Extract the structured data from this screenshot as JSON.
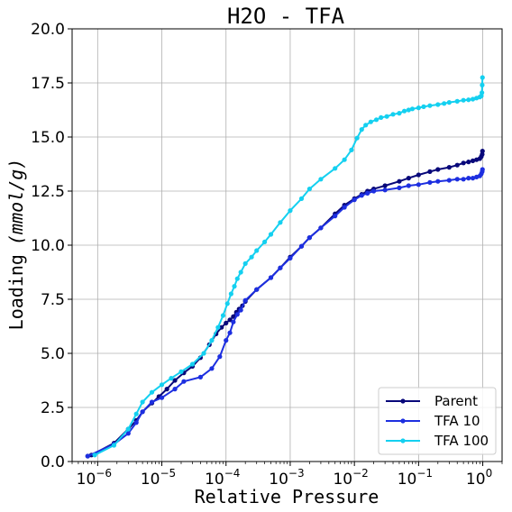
{
  "chart_data": {
    "type": "line",
    "title": "H2O - TFA",
    "xlabel": "Relative Pressure",
    "ylabel": "Loading (mmol/g)",
    "ylabel_prefix": "Loading",
    "ylabel_math": "(mmol/g)",
    "xscale": "log",
    "xlim": [
      4e-07,
      2.0
    ],
    "ylim": [
      0,
      20
    ],
    "grid": true,
    "legend_position": "lower-right",
    "x_ticks": [
      {
        "value": 1e-06,
        "base": "10",
        "exp": "−6"
      },
      {
        "value": 1e-05,
        "base": "10",
        "exp": "−5"
      },
      {
        "value": 0.0001,
        "base": "10",
        "exp": "−4"
      },
      {
        "value": 0.001,
        "base": "10",
        "exp": "−3"
      },
      {
        "value": 0.01,
        "base": "10",
        "exp": "−2"
      },
      {
        "value": 0.1,
        "base": "10",
        "exp": "−1"
      },
      {
        "value": 1,
        "base": "10",
        "exp": "0"
      }
    ],
    "y_ticks": [
      {
        "value": 0,
        "label": "0.0"
      },
      {
        "value": 2.5,
        "label": "2.5"
      },
      {
        "value": 5,
        "label": "5.0"
      },
      {
        "value": 7.5,
        "label": "7.5"
      },
      {
        "value": 10,
        "label": "10.0"
      },
      {
        "value": 12.5,
        "label": "12.5"
      },
      {
        "value": 15,
        "label": "15.0"
      },
      {
        "value": 17.5,
        "label": "17.5"
      },
      {
        "value": 20,
        "label": "20.0"
      }
    ],
    "series": [
      {
        "name": "Parent",
        "color": "#08087a",
        "x": [
          7e-07,
          8e-07,
          1.8e-06,
          3e-06,
          4e-06,
          5e-06,
          7e-06,
          9e-06,
          1.2e-05,
          1.6e-05,
          2.2e-05,
          3e-05,
          4e-05,
          5.5e-05,
          7e-05,
          8.5e-05,
          0.0001,
          0.000115,
          0.00013,
          0.000145,
          0.00016,
          0.00018,
          0.0002,
          0.0003,
          0.0005,
          0.0007,
          0.001,
          0.0015,
          0.002,
          0.003,
          0.005,
          0.007,
          0.01,
          0.013,
          0.016,
          0.02,
          0.03,
          0.05,
          0.07,
          0.1,
          0.15,
          0.2,
          0.3,
          0.4,
          0.5,
          0.6,
          0.7,
          0.8,
          0.9,
          0.95,
          0.98,
          0.99
        ],
        "y": [
          0.25,
          0.3,
          0.85,
          1.5,
          1.9,
          2.3,
          2.7,
          3.0,
          3.35,
          3.75,
          4.1,
          4.4,
          4.8,
          5.4,
          5.9,
          6.2,
          6.4,
          6.55,
          6.7,
          6.9,
          7.05,
          7.2,
          7.4,
          7.95,
          8.5,
          8.95,
          9.45,
          9.95,
          10.35,
          10.8,
          11.45,
          11.85,
          12.15,
          12.35,
          12.5,
          12.6,
          12.75,
          12.95,
          13.1,
          13.25,
          13.4,
          13.5,
          13.6,
          13.7,
          13.8,
          13.85,
          13.9,
          13.95,
          14.0,
          14.1,
          14.2,
          14.35
        ]
      },
      {
        "name": "TFA 10",
        "color": "#1d2fe0",
        "x": [
          7e-07,
          1.8e-06,
          3e-06,
          4e-06,
          5e-06,
          7e-06,
          1e-05,
          1.6e-05,
          2.2e-05,
          4e-05,
          6e-05,
          8e-05,
          0.0001,
          0.000115,
          0.00013,
          0.00015,
          0.00017,
          0.0002,
          0.0003,
          0.0005,
          0.0007,
          0.001,
          0.0015,
          0.002,
          0.003,
          0.005,
          0.007,
          0.01,
          0.013,
          0.016,
          0.02,
          0.03,
          0.05,
          0.07,
          0.1,
          0.15,
          0.2,
          0.3,
          0.4,
          0.5,
          0.6,
          0.7,
          0.8,
          0.9,
          0.95,
          0.98,
          0.99
        ],
        "y": [
          0.25,
          0.8,
          1.3,
          1.8,
          2.3,
          2.75,
          2.95,
          3.35,
          3.7,
          3.9,
          4.3,
          4.85,
          5.6,
          5.95,
          6.45,
          6.8,
          7.0,
          7.45,
          7.95,
          8.5,
          8.95,
          9.4,
          9.95,
          10.35,
          10.8,
          11.35,
          11.75,
          12.1,
          12.3,
          12.4,
          12.5,
          12.55,
          12.65,
          12.75,
          12.8,
          12.9,
          12.95,
          13.0,
          13.05,
          13.05,
          13.1,
          13.1,
          13.15,
          13.2,
          13.3,
          13.4,
          13.5
        ]
      },
      {
        "name": "TFA 100",
        "color": "#14d0f0",
        "x": [
          9e-07,
          1.8e-06,
          3e-06,
          4e-06,
          5e-06,
          7e-06,
          1e-05,
          1.4e-05,
          2e-05,
          3e-05,
          4.5e-05,
          6e-05,
          7.5e-05,
          9e-05,
          0.000105,
          0.00012,
          0.000135,
          0.00015,
          0.00017,
          0.0002,
          0.00025,
          0.0003,
          0.0004,
          0.0005,
          0.0007,
          0.001,
          0.0015,
          0.002,
          0.003,
          0.005,
          0.007,
          0.009,
          0.011,
          0.013,
          0.015,
          0.018,
          0.022,
          0.026,
          0.032,
          0.04,
          0.05,
          0.06,
          0.07,
          0.08,
          0.1,
          0.12,
          0.15,
          0.2,
          0.25,
          0.3,
          0.4,
          0.5,
          0.6,
          0.7,
          0.8,
          0.9,
          0.95,
          0.97,
          0.98,
          0.99
        ],
        "y": [
          0.3,
          0.75,
          1.5,
          2.2,
          2.75,
          3.2,
          3.55,
          3.85,
          4.15,
          4.5,
          5.0,
          5.6,
          6.2,
          6.75,
          7.3,
          7.75,
          8.1,
          8.45,
          8.75,
          9.15,
          9.45,
          9.75,
          10.15,
          10.5,
          11.05,
          11.6,
          12.15,
          12.6,
          13.05,
          13.55,
          13.95,
          14.4,
          14.95,
          15.35,
          15.55,
          15.7,
          15.8,
          15.9,
          15.95,
          16.05,
          16.1,
          16.2,
          16.25,
          16.3,
          16.35,
          16.4,
          16.45,
          16.5,
          16.55,
          16.6,
          16.65,
          16.7,
          16.72,
          16.75,
          16.8,
          16.85,
          16.9,
          17.05,
          17.4,
          17.75
        ]
      }
    ]
  }
}
